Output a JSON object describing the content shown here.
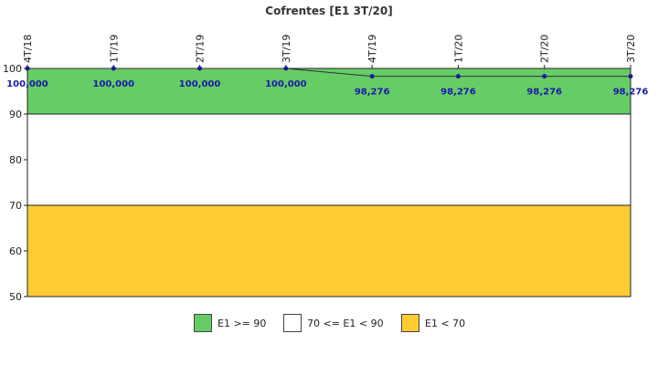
{
  "chart_data": {
    "type": "line",
    "title": "Cofrentes [E1 3T/20]",
    "categories": [
      "4T/18",
      "1T/19",
      "2T/19",
      "3T/19",
      "4T/19",
      "1T/20",
      "2T/20",
      "3T/20"
    ],
    "values": [
      100,
      100,
      100,
      100,
      98.276,
      98.276,
      98.276,
      98.276
    ],
    "value_labels": [
      "100,000",
      "100,000",
      "100,000",
      "100,000",
      "98,276",
      "98,276",
      "98,276",
      "98,276"
    ],
    "ylim": [
      50,
      100
    ],
    "yticks": [
      50,
      60,
      70,
      80,
      90,
      100
    ],
    "xaxis_position": "top",
    "grid": false,
    "bands": [
      {
        "from": 90,
        "to": 100,
        "color": "#66cc66",
        "label": "E1 >= 90"
      },
      {
        "from": 70,
        "to": 90,
        "color": "#ffffff",
        "label": "70 <= E1 < 90"
      },
      {
        "from": 50,
        "to": 70,
        "color": "#ffcc33",
        "label": "E1 < 70"
      }
    ],
    "series_color": "#1a1a99",
    "legend_position": "bottom"
  }
}
